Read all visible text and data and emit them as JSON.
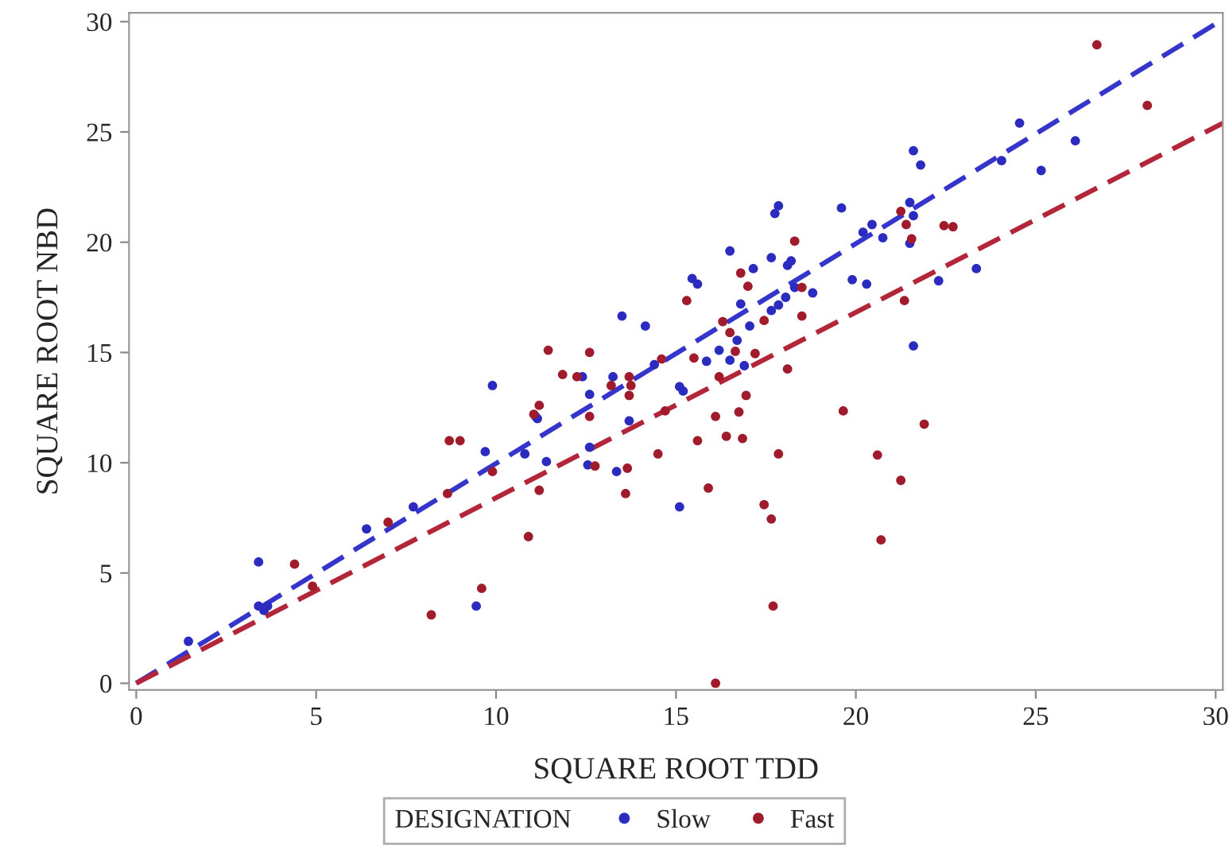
{
  "chart_data": {
    "type": "scatter",
    "xlabel": "SQUARE ROOT TDD",
    "ylabel": "SQUARE ROOT NBD",
    "legend_title": "DESIGNATION",
    "legend": "bottom",
    "marker": "circle",
    "grid": false,
    "xlim": [
      -0.2,
      30.2
    ],
    "ylim": [
      -0.3,
      30.4
    ],
    "xticks": [
      0,
      5,
      10,
      15,
      20,
      25,
      30
    ],
    "yticks": [
      0,
      5,
      10,
      15,
      20,
      25,
      30
    ],
    "series": [
      {
        "name": "Slow",
        "color": "#2b2bc0",
        "x": [
          1.45,
          3.4,
          3.4,
          3.55,
          3.65,
          6.4,
          7.7,
          9.7,
          10.8,
          11.4,
          9.45,
          9.9,
          11.1,
          11.15,
          12.4,
          12.6,
          12.6,
          12.55,
          13.25,
          13.5,
          13.7,
          13.35,
          14.15,
          14.4,
          15.1,
          15.1,
          15.2,
          15.6,
          15.45,
          15.85,
          16.2,
          16.5,
          16.7,
          16.9,
          17.05,
          16.8,
          17.65,
          17.85,
          18.05,
          18.3,
          18.8,
          21.6,
          21.8,
          19.6,
          17.75,
          17.85,
          20.2,
          20.45,
          20.75,
          21.5,
          21.6,
          21.5,
          23.35,
          22.3,
          19.9,
          20.3,
          21.6,
          17.15,
          17.65,
          16.5,
          18.1,
          18.2,
          24.55,
          26.1,
          24.05,
          25.15
        ],
        "values": [
          1.9,
          5.5,
          3.5,
          3.3,
          3.5,
          7.0,
          8.0,
          10.5,
          10.4,
          10.05,
          3.5,
          13.5,
          12.1,
          12.0,
          13.9,
          13.1,
          10.7,
          9.9,
          13.9,
          16.65,
          11.9,
          9.6,
          16.2,
          14.45,
          8.0,
          13.45,
          13.25,
          18.1,
          18.35,
          14.6,
          15.1,
          14.65,
          15.55,
          14.4,
          16.2,
          17.2,
          16.9,
          17.15,
          17.5,
          17.95,
          17.7,
          24.15,
          23.5,
          21.55,
          21.3,
          21.65,
          20.45,
          20.8,
          20.2,
          21.8,
          21.2,
          19.95,
          18.8,
          18.25,
          18.3,
          18.1,
          15.3,
          18.8,
          19.3,
          19.6,
          18.95,
          19.15,
          25.4,
          24.6,
          23.7,
          23.25
        ]
      },
      {
        "name": "Fast",
        "color": "#a01c2c",
        "x": [
          4.4,
          4.9,
          7.0,
          8.65,
          9.9,
          11.2,
          10.9,
          9.6,
          8.2,
          8.7,
          9.0,
          11.2,
          11.05,
          11.45,
          11.85,
          12.25,
          12.6,
          12.6,
          12.75,
          13.2,
          13.7,
          13.75,
          13.7,
          13.65,
          13.6,
          14.6,
          14.7,
          14.5,
          15.3,
          15.5,
          15.6,
          15.9,
          16.1,
          16.1,
          16.2,
          16.3,
          16.5,
          16.65,
          16.4,
          16.75,
          16.85,
          16.95,
          17.2,
          17.45,
          17.45,
          17.65,
          17.7,
          17.85,
          18.1,
          18.5,
          17.0,
          18.5,
          19.65,
          21.25,
          21.4,
          21.55,
          22.45,
          22.7,
          21.35,
          21.9,
          18.3,
          16.8,
          26.7,
          28.1,
          21.25,
          20.7,
          20.6
        ],
        "values": [
          5.4,
          4.4,
          7.3,
          8.6,
          9.6,
          8.75,
          6.65,
          4.3,
          3.1,
          11.0,
          11.0,
          12.6,
          12.2,
          15.1,
          14.0,
          13.9,
          15.0,
          12.1,
          9.85,
          13.5,
          13.9,
          13.5,
          13.05,
          9.75,
          8.6,
          14.7,
          12.35,
          10.4,
          17.35,
          14.75,
          11.0,
          8.85,
          0,
          12.1,
          13.9,
          16.4,
          15.9,
          15.05,
          11.2,
          12.3,
          11.1,
          13.05,
          14.95,
          16.45,
          8.1,
          7.45,
          3.5,
          10.4,
          14.25,
          16.65,
          18.0,
          17.95,
          12.35,
          21.4,
          20.8,
          20.15,
          20.75,
          20.7,
          17.35,
          11.75,
          20.05,
          18.6,
          28.95,
          26.2,
          9.2,
          6.5,
          10.35
        ]
      },
      {
        "type": "line",
        "marker": "none",
        "color": "#3535cc",
        "line_style": "dashed",
        "x": [
          0,
          30.2
        ],
        "values": [
          0,
          30.1
        ]
      },
      {
        "type": "line",
        "marker": "none",
        "color": "#b3263a",
        "line_style": "dashed",
        "x": [
          0,
          30.2
        ],
        "values": [
          0,
          25.4
        ]
      }
    ]
  }
}
